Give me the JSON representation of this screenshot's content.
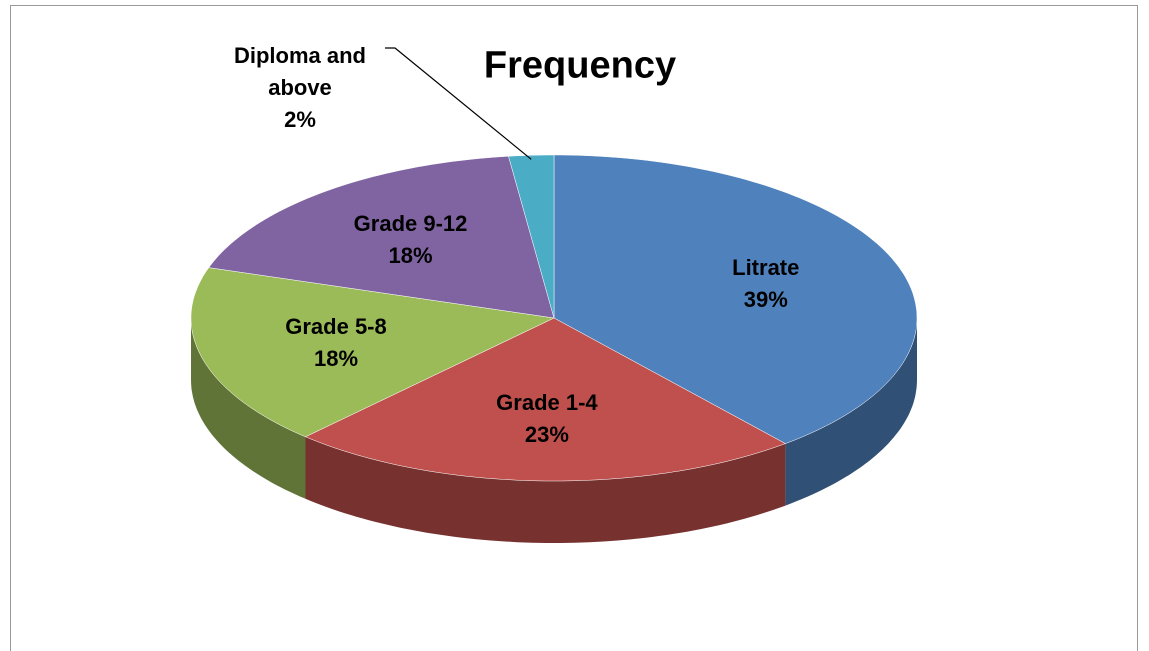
{
  "chart_data": {
    "type": "pie",
    "title": "Frequency",
    "categories": [
      "Litrate",
      "Grade 1-4",
      "Grade 5-8",
      "Grade 9-12",
      "Diploma and above"
    ],
    "values": [
      39,
      23,
      18,
      18,
      2
    ],
    "value_labels": [
      "39%",
      "23%",
      "18%",
      "18%",
      "2%"
    ],
    "colors": [
      "#4f81bd",
      "#c0504d",
      "#9bbb59",
      "#8064a2",
      "#4bacc6"
    ]
  }
}
